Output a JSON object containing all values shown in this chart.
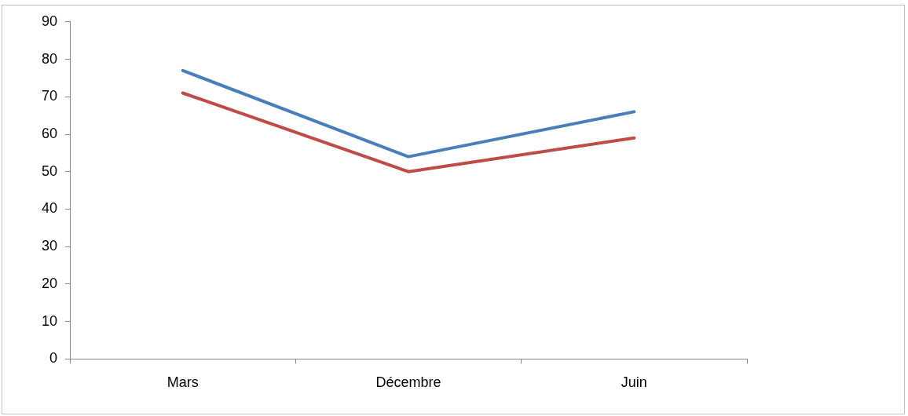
{
  "chart_data": {
    "type": "line",
    "categories": [
      "Mars",
      "Décembre",
      "Juin"
    ],
    "series": [
      {
        "color": "#4a7ebb",
        "values": [
          77,
          54,
          66
        ]
      },
      {
        "color": "#be4b48",
        "values": [
          71,
          50,
          59
        ]
      }
    ],
    "ylim": [
      0,
      90
    ],
    "yticks": [
      0,
      10,
      20,
      30,
      40,
      50,
      60,
      70,
      80,
      90
    ],
    "grid": false,
    "legend": false,
    "marker": "none",
    "line_style": "solid"
  }
}
